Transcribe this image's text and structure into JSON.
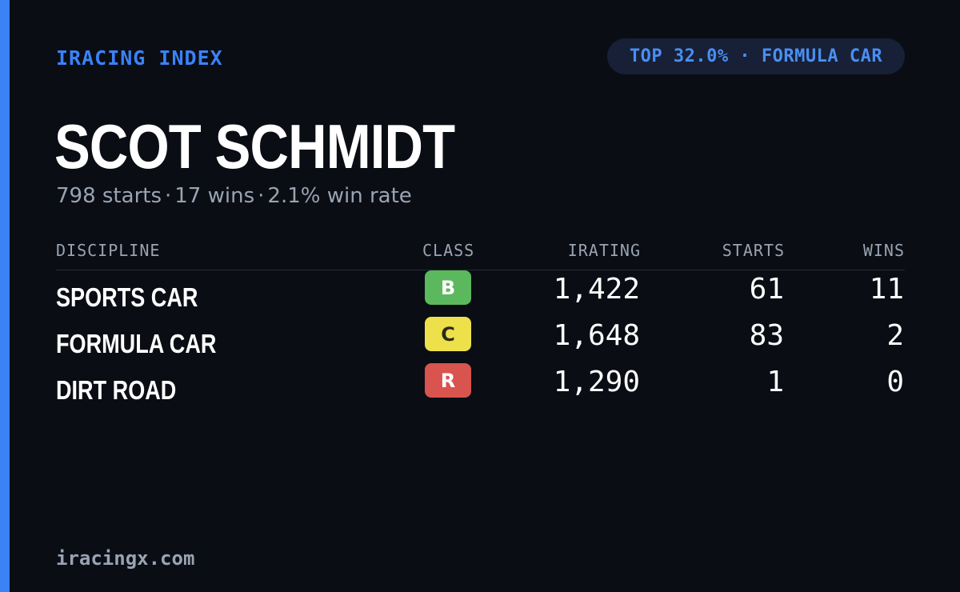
{
  "brand": {
    "label": "IRACING INDEX",
    "domain": "iracingx.com",
    "accent_color": "#3b82f6"
  },
  "rank_badge": {
    "text": "TOP 32.0% · FORMULA CAR"
  },
  "driver": {
    "name": "SCOT SCHMIDT",
    "starts_text": "798 starts",
    "wins_text": "17 wins",
    "win_rate_text": "2.1% win rate",
    "separator": "·"
  },
  "table": {
    "headers": {
      "discipline": "DISCIPLINE",
      "class": "CLASS",
      "irating": "IRATING",
      "starts": "STARTS",
      "wins": "WINS"
    },
    "rows": [
      {
        "discipline": "SPORTS CAR",
        "class": "B",
        "class_color": "#5cb85c",
        "class_text_color": "#ffffff",
        "irating": "1,422",
        "starts": "61",
        "wins": "11"
      },
      {
        "discipline": "FORMULA CAR",
        "class": "C",
        "class_color": "#ede04a",
        "class_text_color": "#2a2a1a",
        "irating": "1,648",
        "starts": "83",
        "wins": "2"
      },
      {
        "discipline": "DIRT ROAD",
        "class": "R",
        "class_color": "#d9534f",
        "class_text_color": "#ffffff",
        "irating": "1,290",
        "starts": "1",
        "wins": "0"
      }
    ]
  }
}
